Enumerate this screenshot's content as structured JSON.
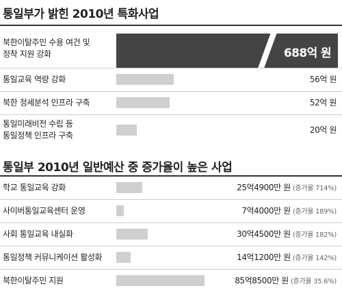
{
  "chart_data": [
    {
      "type": "bar",
      "title": "통일부가 밝힌 2010년 특화사업",
      "categories": [
        "북한이탈주민 수용 여건 및 정착 지원 강화",
        "통일교육 역량 강화",
        "북한 정세분석 인프라 구축",
        "통일미래비전 수립 등 통일정책 인프라 구축"
      ],
      "category_lines": [
        [
          "북한이탈주민 수용 여건 및",
          "정착 지원 강화"
        ],
        [
          "통일교육 역량 강화"
        ],
        [
          "북한 정세분석 인프라 구축"
        ],
        [
          "통일미래비전 수립 등",
          "통일정책 인프라 구축"
        ]
      ],
      "values": [
        688,
        56,
        52,
        20
      ],
      "value_labels": [
        "688억 원",
        "56억 원",
        "52억 원",
        "20억 원"
      ],
      "unit": "억 원",
      "broken_axis": true,
      "highlight_color": "#444444",
      "bar_color": "#cfcfcf"
    },
    {
      "type": "bar",
      "title": "통일부 2010년 일반예산 중 증가율이 높은 사업",
      "categories": [
        "학교 통일교육 강화",
        "사이버통일교육센터 운영",
        "사회 통일교육 내실화",
        "통일정책 커뮤니케이션 활성화",
        "북한이탈주민 지원"
      ],
      "values": [
        25.49,
        7.4,
        30.45,
        14.12,
        85.85
      ],
      "value_labels": [
        "25억4900만 원",
        "7억4000만 원",
        "30억4500만 원",
        "14억1200만 원",
        "85억8500만 원"
      ],
      "rate_labels": [
        "(증가율 714%)",
        "(증가율 189%)",
        "(증가율 182%)",
        "(증가율 142%)",
        "(증가율 35.6%)"
      ],
      "growth_rates": [
        714,
        189,
        182,
        142,
        35.6
      ],
      "unit": "억 원",
      "bar_color": "#cfcfcf"
    }
  ]
}
